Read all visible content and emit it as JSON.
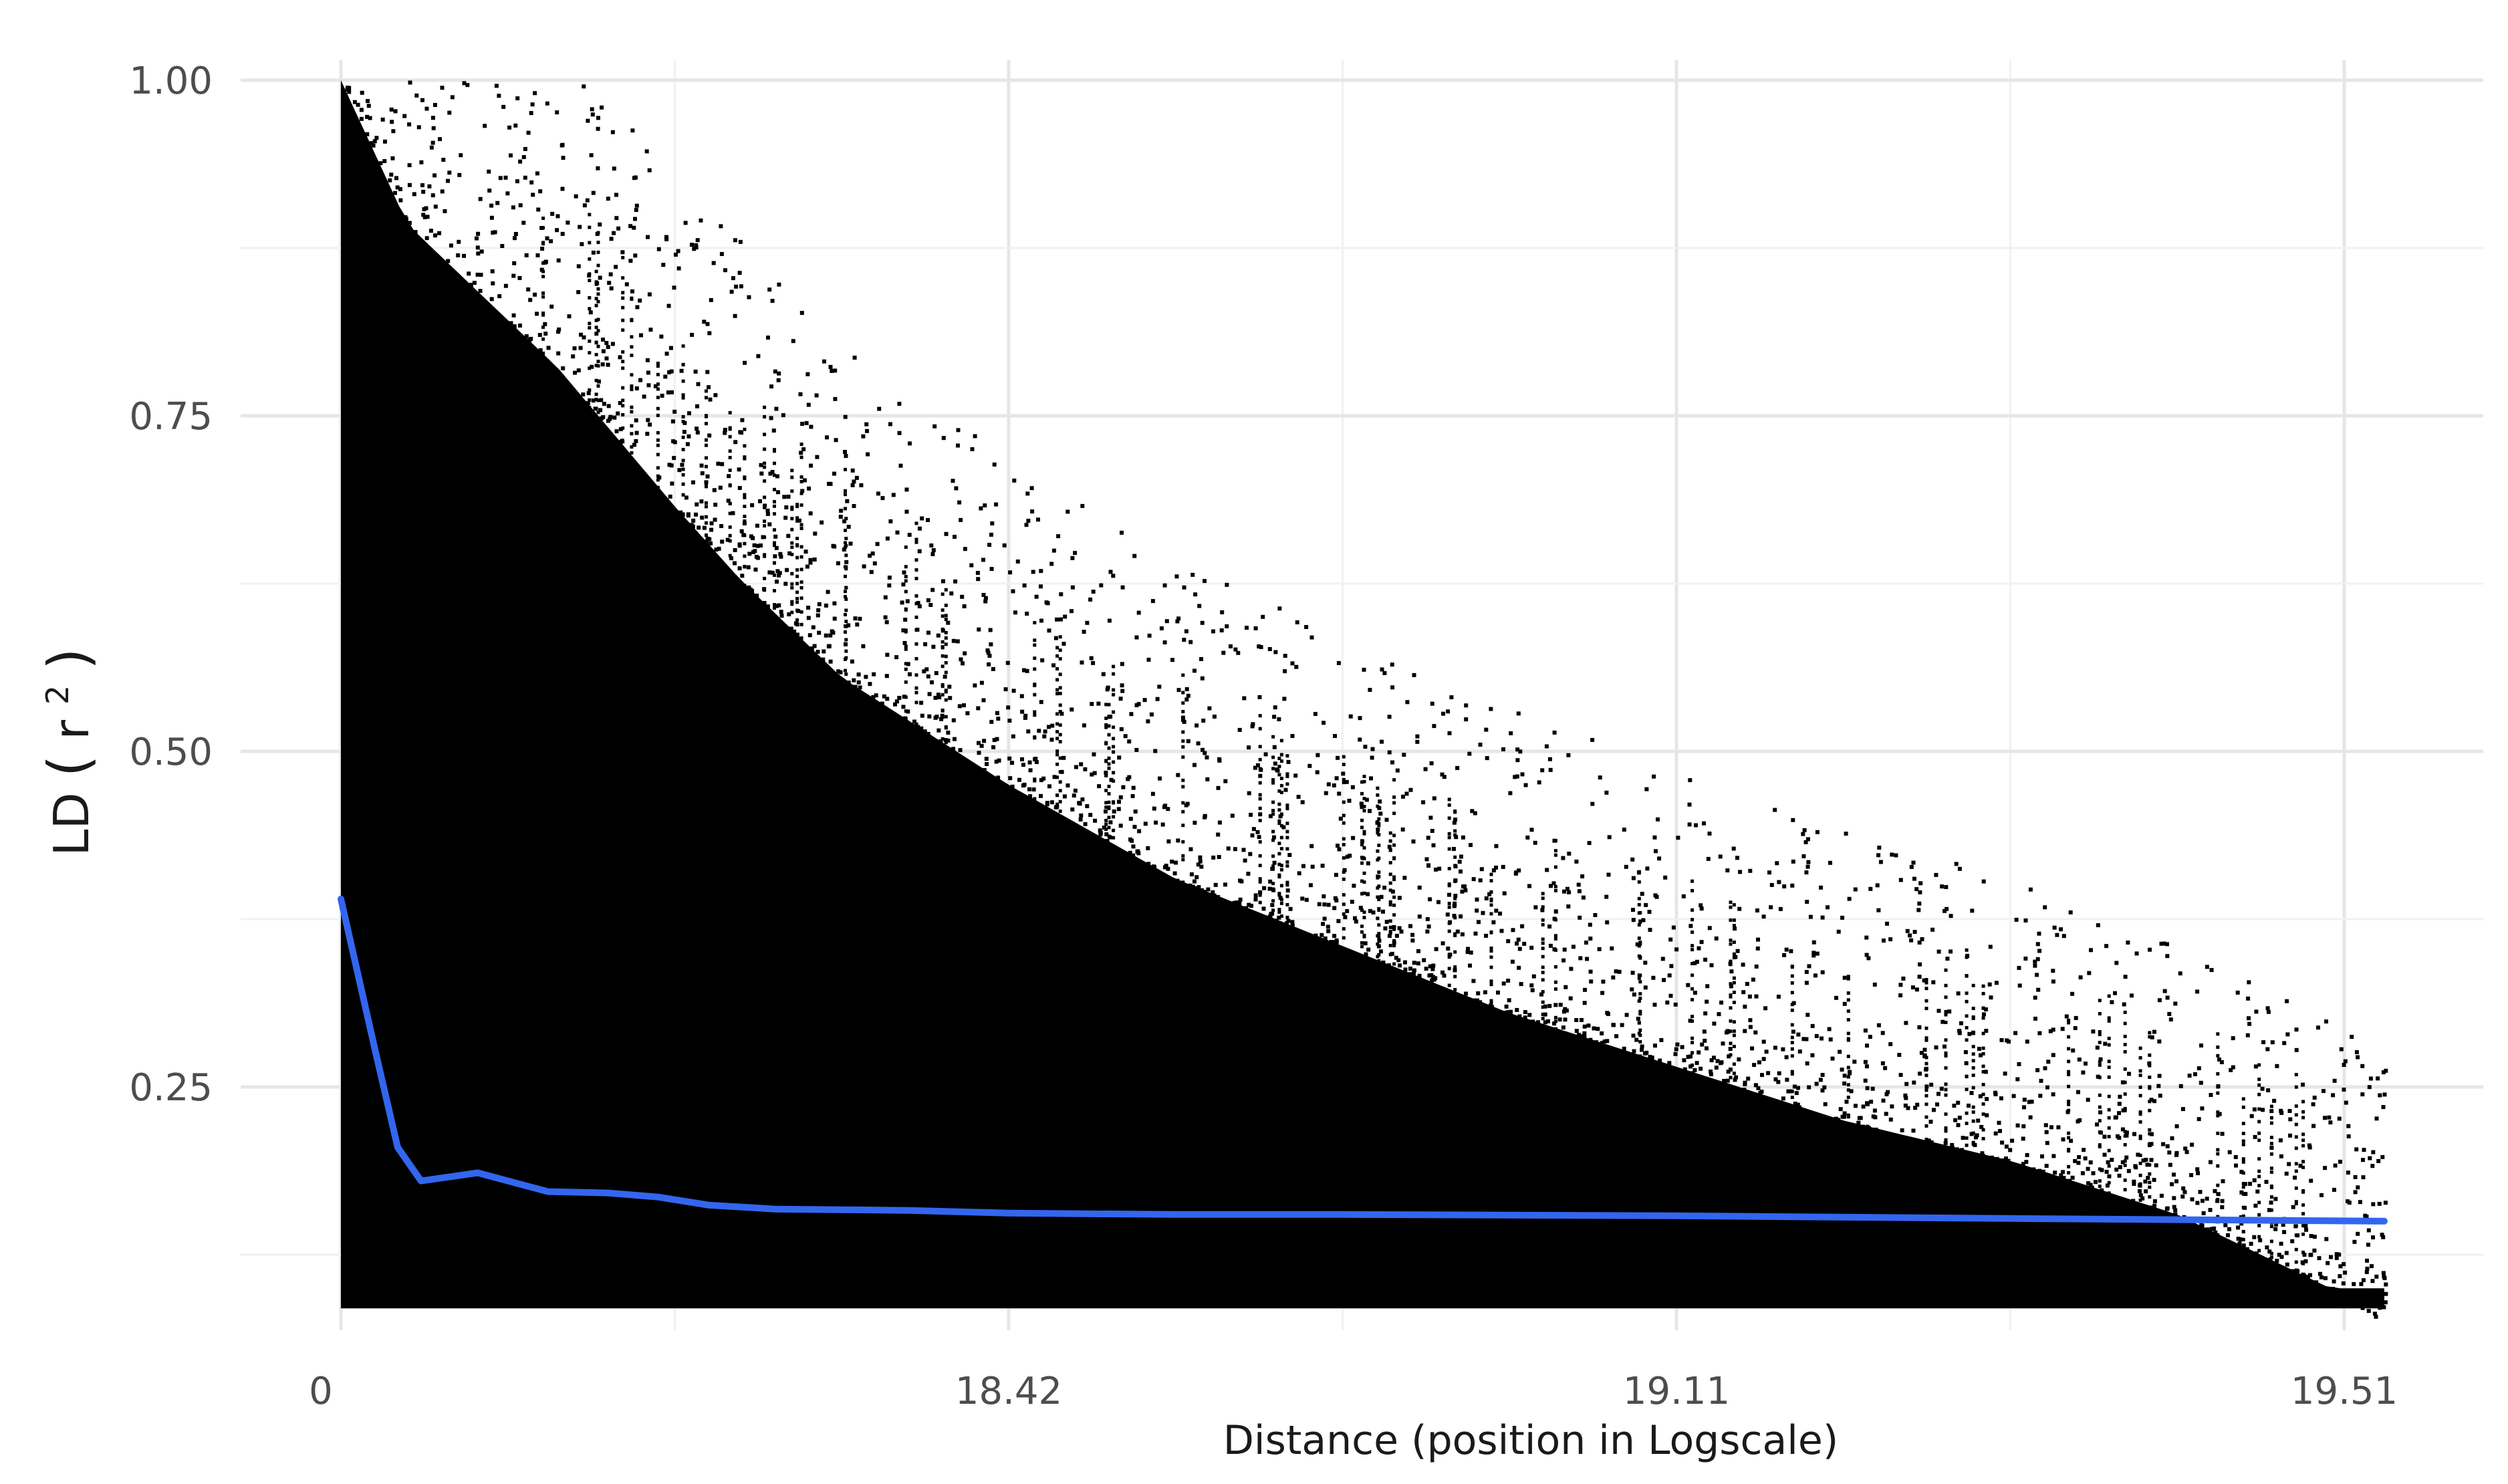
{
  "chart_data": {
    "type": "scatter",
    "title": "",
    "xlabel": "Distance (position in Logscale)",
    "ylabel": {
      "prefix": "LD ",
      "open": "(",
      "base": "r",
      "superscript": "2",
      "close": ")"
    },
    "x_ticks": [
      {
        "label": "0",
        "value": 0
      },
      {
        "label": "18.42",
        "value": 18.42
      },
      {
        "label": "19.11",
        "value": 19.11
      },
      {
        "label": "19.51",
        "value": 19.51
      }
    ],
    "y_ticks": [
      {
        "label": "0.25",
        "value": 0.25
      },
      {
        "label": "0.50",
        "value": 0.5
      },
      {
        "label": "0.75",
        "value": 0.75
      },
      {
        "label": "1.00",
        "value": 1.0
      }
    ],
    "ylim": [
      0.1,
      1.0
    ],
    "grid": true,
    "legend": "none",
    "point_color": "#000000",
    "trend_color": "#3366ee",
    "scatter_upper_envelope": [
      {
        "x_pos": 0.0,
        "y": 1.0
      },
      {
        "x_pos": 0.2,
        "y": 0.9
      },
      {
        "x_pos": 0.65,
        "y": 0.81
      },
      {
        "x_pos": 1.0,
        "y": 0.72
      },
      {
        "x_pos": 1.5,
        "y": 0.6
      },
      {
        "x_pos": 2.0,
        "y": 0.52
      },
      {
        "x_pos": 2.5,
        "y": 0.45
      },
      {
        "x_pos": 3.0,
        "y": 0.4
      },
      {
        "x_pos": 3.5,
        "y": 0.35
      },
      {
        "x_pos": 4.0,
        "y": 0.31
      },
      {
        "x_pos": 4.5,
        "y": 0.27
      },
      {
        "x_pos": 5.0,
        "y": 0.24
      },
      {
        "x_pos": 5.5,
        "y": 0.2
      },
      {
        "x_pos": 6.0,
        "y": 0.14
      },
      {
        "x_pos": 6.12,
        "y": 0.12
      }
    ],
    "trend_line": [
      {
        "x_pos": 0.0,
        "y": 0.39
      },
      {
        "x_pos": 0.1,
        "y": 0.28
      },
      {
        "x_pos": 0.17,
        "y": 0.205
      },
      {
        "x_pos": 0.24,
        "y": 0.18
      },
      {
        "x_pos": 0.41,
        "y": 0.186
      },
      {
        "x_pos": 0.5,
        "y": 0.18
      },
      {
        "x_pos": 0.62,
        "y": 0.172
      },
      {
        "x_pos": 0.8,
        "y": 0.171
      },
      {
        "x_pos": 0.95,
        "y": 0.168
      },
      {
        "x_pos": 1.1,
        "y": 0.162
      },
      {
        "x_pos": 1.3,
        "y": 0.159
      },
      {
        "x_pos": 1.7,
        "y": 0.158
      },
      {
        "x_pos": 2.0,
        "y": 0.156
      },
      {
        "x_pos": 2.5,
        "y": 0.155
      },
      {
        "x_pos": 3.0,
        "y": 0.155
      },
      {
        "x_pos": 4.0,
        "y": 0.154
      },
      {
        "x_pos": 5.0,
        "y": 0.152
      },
      {
        "x_pos": 6.12,
        "y": 0.15
      }
    ]
  }
}
